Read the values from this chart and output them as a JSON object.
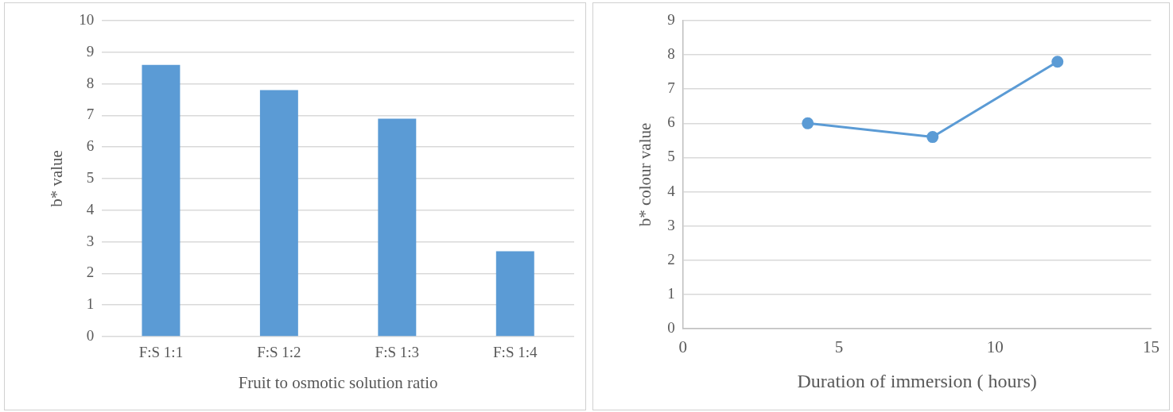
{
  "chart_data": [
    {
      "type": "bar",
      "xlabel": "Fruit to osmotic solution ratio",
      "ylabel": "b* value",
      "categories": [
        "F:S 1:1",
        "F:S 1:2",
        "F:S 1:3",
        "F:S 1:4"
      ],
      "values": [
        8.6,
        7.8,
        6.9,
        2.7
      ],
      "color": "#5b9bd5",
      "ylim": [
        0,
        10
      ],
      "yticks": [
        0,
        1,
        2,
        3,
        4,
        5,
        6,
        7,
        8,
        9,
        10
      ],
      "grid": "y"
    },
    {
      "type": "line",
      "xlabel": "Duration of immersion ( hours)",
      "ylabel": "b* colour value",
      "x": [
        4,
        8,
        12
      ],
      "values": [
        6.0,
        5.6,
        7.8
      ],
      "color": "#5b9bd5",
      "marker": "circle",
      "xlim": [
        0,
        15
      ],
      "xticks": [
        0,
        5,
        10,
        15
      ],
      "ylim": [
        0,
        9
      ],
      "yticks": [
        0,
        1,
        2,
        3,
        4,
        5,
        6,
        7,
        8,
        9
      ],
      "grid": "y"
    }
  ]
}
